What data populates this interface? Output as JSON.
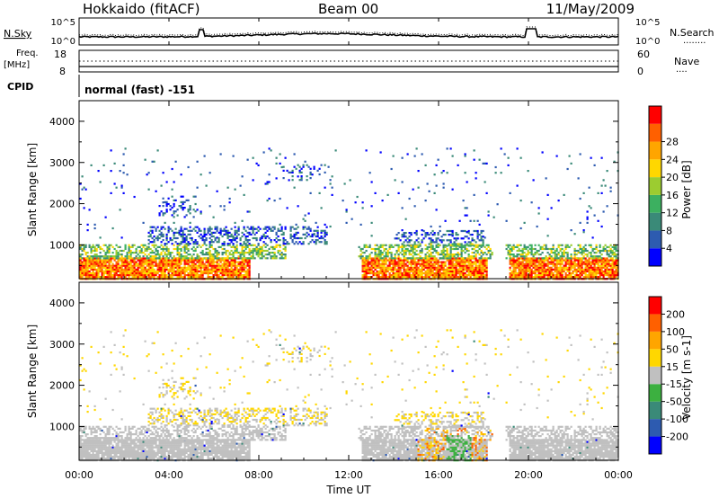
{
  "header": {
    "station": "Hokkaido (fitACF)",
    "beam": "Beam 00",
    "date": "11/May/2009"
  },
  "top_panels": {
    "nsky_label": "N.Sky",
    "nsearch_label": "N.Search",
    "nsearch_dots": "........",
    "noise_ticks": [
      "10^5",
      "10^0"
    ],
    "freq_label_1": "Freq.",
    "freq_label_2": "[MHz]",
    "freq_ticks": [
      "18",
      "8"
    ],
    "nave_label": "Nave",
    "nave_dots": "....",
    "nave_ticks": [
      "60",
      "0"
    ],
    "cpid_label": "CPID",
    "cpid_text": "normal (fast) -151"
  },
  "time_axis": {
    "ticks": [
      "00:00",
      "04:00",
      "08:00",
      "12:00",
      "16:00",
      "20:00",
      "00:00"
    ],
    "label": "Time UT"
  },
  "chart_data": [
    {
      "type": "heatmap",
      "name": "power",
      "xlabel": "Time UT",
      "ylabel": "Slant Range [km]",
      "x_range_hours": [
        0,
        24
      ],
      "ylim": [
        180,
        4500
      ],
      "yticks": [
        1000,
        2000,
        3000,
        4000
      ],
      "colorbar": {
        "label": "Power [dB]",
        "ticks": [
          4,
          8,
          12,
          16,
          20,
          24,
          28
        ],
        "colors": [
          "#0000ff",
          "#2d5bb0",
          "#3a8a78",
          "#3cb060",
          "#9ccc30",
          "#ffd700",
          "#ffa500",
          "#ff6000",
          "#ff0000"
        ]
      }
    },
    {
      "type": "heatmap",
      "name": "velocity",
      "xlabel": "Time UT",
      "ylabel": "Slant Range [km]",
      "x_range_hours": [
        0,
        24
      ],
      "ylim": [
        180,
        4500
      ],
      "yticks": [
        1000,
        2000,
        3000,
        4000
      ],
      "colorbar": {
        "label": "Velocity [m s-1]",
        "ticks": [
          200,
          100,
          50,
          15,
          -15,
          -50,
          -100,
          -200
        ],
        "colors": [
          "#0000ff",
          "#2d5bb0",
          "#3a8a78",
          "#3cb040",
          "#c0c0c0",
          "#ffd700",
          "#ffa500",
          "#ff6000",
          "#ff0000"
        ]
      }
    }
  ]
}
